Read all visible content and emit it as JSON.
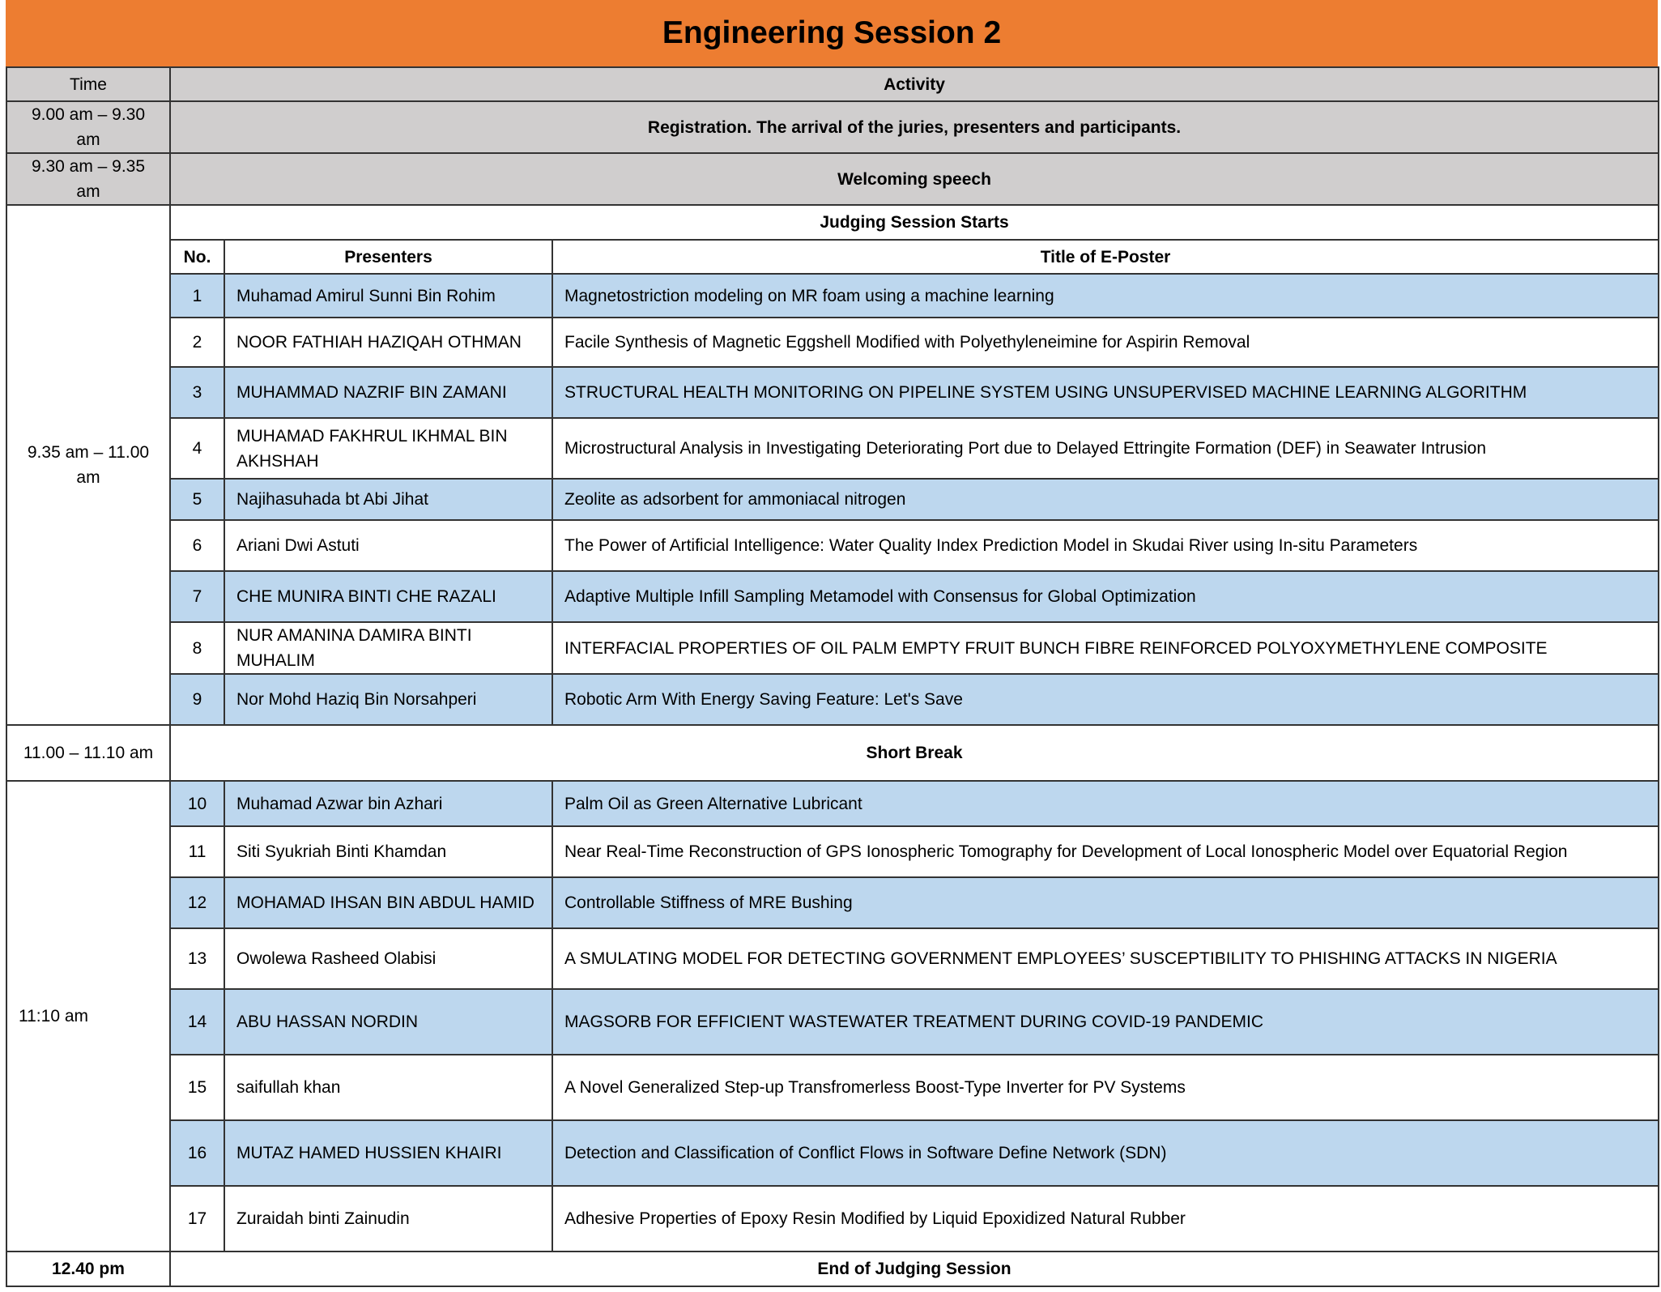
{
  "title": "Engineering Session 2",
  "header": {
    "time": "Time",
    "activity": "Activity"
  },
  "colors": {
    "title_bg": "#ED7D31",
    "header_bg": "#D0CECE",
    "alt_row_bg": "#BDD7EE"
  },
  "registration": {
    "time": "9.00 am – 9.30 am",
    "activity": "Registration. The arrival of the juries, presenters and participants."
  },
  "welcoming": {
    "time": "9.30 am – 9.35 am",
    "activity": "Welcoming speech"
  },
  "judging": {
    "heading": "Judging Session Starts",
    "columns": {
      "no": "No.",
      "presenters": "Presenters",
      "title": "Title of E-Poster"
    }
  },
  "block1": {
    "time": "9.35 am – 11.00 am",
    "rows": [
      {
        "no": "1",
        "presenter": "Muhamad Amirul Sunni Bin Rohim",
        "title": "Magnetostriction modeling on MR foam using a machine learning"
      },
      {
        "no": "2",
        "presenter": "NOOR FATHIAH HAZIQAH OTHMAN",
        "title": "Facile Synthesis of Magnetic Eggshell Modified with Polyethyleneimine for Aspirin Removal"
      },
      {
        "no": "3",
        "presenter": "MUHAMMAD NAZRIF BIN ZAMANI",
        "title": "STRUCTURAL HEALTH MONITORING ON PIPELINE SYSTEM USING UNSUPERVISED MACHINE LEARNING ALGORITHM"
      },
      {
        "no": "4",
        "presenter": "MUHAMAD FAKHRUL IKHMAL BIN AKHSHAH",
        "title": "Microstructural Analysis in Investigating Deteriorating Port due to Delayed Ettringite Formation (DEF) in Seawater Intrusion"
      },
      {
        "no": "5",
        "presenter": "Najihasuhada bt Abi Jihat",
        "title": "Zeolite as adsorbent for ammoniacal nitrogen"
      },
      {
        "no": "6",
        "presenter": "Ariani Dwi Astuti",
        "title": "The Power of Artificial Intelligence: Water Quality Index Prediction Model in Skudai River using In-situ Parameters"
      },
      {
        "no": "7",
        "presenter": "CHE MUNIRA BINTI CHE RAZALI",
        "title": "Adaptive Multiple Infill  Sampling Metamodel with Consensus for Global Optimization"
      },
      {
        "no": "8",
        "presenter": "NUR AMANINA DAMIRA BINTI MUHALIM",
        "title": "INTERFACIAL PROPERTIES OF OIL PALM EMPTY FRUIT BUNCH FIBRE REINFORCED POLYOXYMETHYLENE COMPOSITE"
      },
      {
        "no": "9",
        "presenter": "Nor Mohd Haziq Bin Norsahperi",
        "title": "Robotic Arm With Energy Saving Feature: Let's Save"
      }
    ]
  },
  "short_break": {
    "time": "11.00 – 11.10 am",
    "activity": "Short Break"
  },
  "block2": {
    "time": "11:10 am",
    "rows": [
      {
        "no": "10",
        "presenter": "Muhamad Azwar bin Azhari",
        "title": "Palm Oil as Green Alternative Lubricant"
      },
      {
        "no": "11",
        "presenter": "Siti Syukriah Binti Khamdan",
        "title": "Near Real-Time Reconstruction of GPS Ionospheric Tomography for Development of Local Ionospheric Model over Equatorial Region"
      },
      {
        "no": "12",
        "presenter": "MOHAMAD IHSAN BIN ABDUL HAMID",
        "title": "Controllable Stiffness of MRE Bushing"
      },
      {
        "no": "13",
        "presenter": "Owolewa Rasheed Olabisi",
        "title": "A SMULATING MODEL FOR DETECTING GOVERNMENT EMPLOYEES’ SUSCEPTIBILITY  TO PHISHING ATTACKS IN NIGERIA"
      },
      {
        "no": "14",
        "presenter": "ABU HASSAN NORDIN",
        "title": "MAGSORB FOR EFFICIENT WASTEWATER TREATMENT DURING COVID-19 PANDEMIC"
      },
      {
        "no": "15",
        "presenter": "saifullah khan",
        "title": "A Novel Generalized Step-up Transfromerless Boost-Type Inverter for PV Systems"
      },
      {
        "no": "16",
        "presenter": "MUTAZ HAMED HUSSIEN KHAIRI",
        "title": "Detection and Classification of Conflict Flows in Software Define Network (SDN)"
      },
      {
        "no": "17",
        "presenter": "Zuraidah binti Zainudin",
        "title": "Adhesive Properties of Epoxy Resin Modified by Liquid Epoxidized Natural Rubber"
      }
    ]
  },
  "end": {
    "time": "12.40 pm",
    "activity": "End of Judging Session"
  }
}
